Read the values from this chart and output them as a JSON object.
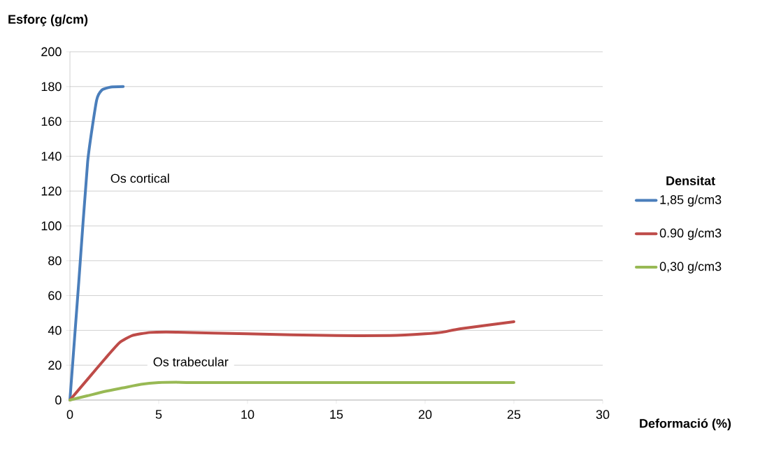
{
  "chart_data": {
    "type": "line",
    "xlabel": "Deformació (%)",
    "ylabel": "Esforç (g/cm)",
    "legend_title": "Densitat",
    "annotations": [
      "Os cortical",
      "Os trabecular"
    ],
    "xlim": [
      0,
      30
    ],
    "xticks": [
      0,
      5,
      10,
      15,
      20,
      25,
      30
    ],
    "ylim": [
      0,
      200
    ],
    "yticks": [
      0,
      20,
      40,
      60,
      80,
      100,
      120,
      140,
      160,
      180,
      200
    ],
    "grid": "y",
    "legend": "right",
    "marker": "none",
    "line_style": "solid",
    "series": [
      {
        "name": "1,85 g/cm3",
        "color": "#4a7ebb",
        "x": [
          0,
          0.5,
          1,
          1.5,
          1.8,
          2.3,
          3
        ],
        "values": [
          0,
          68,
          137,
          172,
          178,
          179.7,
          180
        ]
      },
      {
        "name": "0.90 g/cm3",
        "color": "#be4b48",
        "x": [
          0,
          1,
          2,
          2.8,
          3.5,
          4.5,
          6,
          10,
          15,
          18,
          20,
          21,
          22,
          25
        ],
        "values": [
          0,
          12,
          24,
          33,
          37,
          38.8,
          39,
          38,
          37,
          37,
          38,
          39,
          41,
          45
        ]
      },
      {
        "name": "0,30 g/cm3",
        "color": "#98b954",
        "x": [
          0,
          1,
          2,
          3,
          4,
          5,
          6,
          8,
          25
        ],
        "values": [
          0,
          2.5,
          5,
          7,
          9,
          10,
          10.2,
          10,
          10
        ]
      }
    ]
  }
}
